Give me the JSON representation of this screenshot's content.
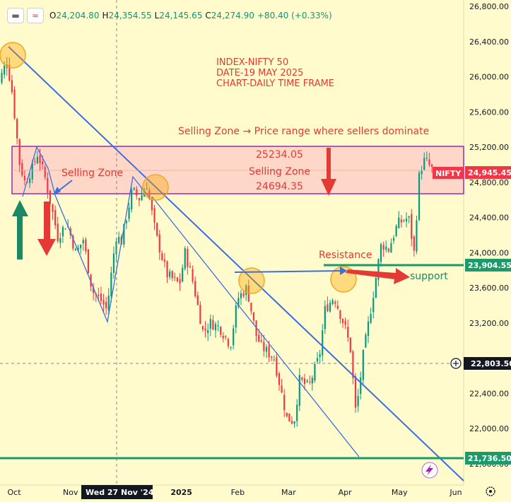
{
  "toolbar": {
    "collapse_icon": "minus-icon",
    "wave_icon": "wave-icon",
    "labels": {
      "o": "O",
      "h": "H",
      "l": "L",
      "c": "C"
    },
    "open": "24,204.80",
    "high": "24,354.55",
    "low": "24,145.65",
    "close": "24,274.90",
    "change": "+80.40 (+0.33%)"
  },
  "annotations": {
    "info_line1": "INDEX-NIFTY 50",
    "info_line2": "DATE-19 MAY 2025",
    "info_line3": "CHART-DAILY TIME FRAME",
    "zone_definition": "Selling Zone → Price range where sellers dominate",
    "zone_top": "25234.05",
    "zone_mid": "Selling Zone",
    "zone_bottom": "24694.35",
    "left_zone_label": "Selling Zone",
    "resistance": "Resistance",
    "support": "support"
  },
  "price_labels": {
    "nifty_tag": "NIFTY",
    "last_price": "24,945.45",
    "support_level": "23,904.55",
    "crosshair_price": "22,803.50",
    "bottom_level": "21,736.50",
    "crosshair_date": "Wed 27 Nov '24"
  },
  "colors": {
    "background": "#fffbcc",
    "up": "#089981",
    "down": "#f23645",
    "trendline": "#3b6fe0",
    "zone_fill": "#ffd7c8",
    "zone_border": "#9c27b0",
    "annotation_red": "#e53935",
    "support_green": "#1b9b6b"
  },
  "chart_data": {
    "type": "candlestick",
    "y_axis": {
      "min": 21450,
      "max": 26800,
      "ticks": [
        "26,800.00",
        "26,400.00",
        "26,000.00",
        "25,600.00",
        "25,200.00",
        "24,800.00",
        "24,400.00",
        "24,000.00",
        "23,600.00",
        "23,200.00",
        "22,400.00",
        "22,000.00",
        "21,600.00"
      ]
    },
    "x_axis": {
      "ticks": [
        {
          "label": "Oct",
          "date": "2024-10-01"
        },
        {
          "label": "Nov",
          "date": "2024-11-01"
        },
        {
          "label": "2025",
          "date": "2025-01-01"
        },
        {
          "label": "Feb",
          "date": "2025-02-01"
        },
        {
          "label": "Mar",
          "date": "2025-03-01"
        },
        {
          "label": "Apr",
          "date": "2025-04-01"
        },
        {
          "label": "May",
          "date": "2025-05-01"
        },
        {
          "label": "Jun",
          "date": "2025-06-01"
        }
      ]
    },
    "levels": {
      "selling_zone_high": 25234.05,
      "selling_zone_low": 24694.35,
      "support": 23904.55,
      "bottom": 21736.5,
      "crosshair": 22803.5,
      "last": 24945.45
    },
    "close_path": [
      [
        "2024-09-20",
        25790
      ],
      [
        "2024-09-27",
        26180
      ],
      [
        "2024-09-30",
        25810
      ],
      [
        "2024-10-04",
        25015
      ],
      [
        "2024-10-07",
        24795
      ],
      [
        "2024-10-11",
        24960
      ],
      [
        "2024-10-14",
        25130
      ],
      [
        "2024-10-18",
        24850
      ],
      [
        "2024-10-22",
        24470
      ],
      [
        "2024-10-25",
        24180
      ],
      [
        "2024-10-30",
        24340
      ],
      [
        "2024-11-04",
        23990
      ],
      [
        "2024-11-08",
        24150
      ],
      [
        "2024-11-13",
        23560
      ],
      [
        "2024-11-18",
        23450
      ],
      [
        "2024-11-21",
        23350
      ],
      [
        "2024-11-26",
        24190
      ],
      [
        "2024-11-29",
        24130
      ],
      [
        "2024-12-05",
        24710
      ],
      [
        "2024-12-09",
        24610
      ],
      [
        "2024-12-13",
        24770
      ],
      [
        "2024-12-18",
        24200
      ],
      [
        "2024-12-24",
        23750
      ],
      [
        "2024-12-31",
        23640
      ],
      [
        "2025-01-03",
        24000
      ],
      [
        "2025-01-07",
        23700
      ],
      [
        "2025-01-13",
        23090
      ],
      [
        "2025-01-17",
        23200
      ],
      [
        "2025-01-22",
        23150
      ],
      [
        "2025-01-28",
        22950
      ],
      [
        "2025-02-01",
        23480
      ],
      [
        "2025-02-06",
        23600
      ],
      [
        "2025-02-11",
        23070
      ],
      [
        "2025-02-14",
        22930
      ],
      [
        "2025-02-21",
        22800
      ],
      [
        "2025-02-28",
        22120
      ],
      [
        "2025-03-04",
        22080
      ],
      [
        "2025-03-07",
        22550
      ],
      [
        "2025-03-12",
        22470
      ],
      [
        "2025-03-18",
        22830
      ],
      [
        "2025-03-21",
        23350
      ],
      [
        "2025-03-26",
        23500
      ],
      [
        "2025-04-01",
        23150
      ],
      [
        "2025-04-04",
        22900
      ],
      [
        "2025-04-07",
        22160
      ],
      [
        "2025-04-11",
        22830
      ],
      [
        "2025-04-15",
        23330
      ],
      [
        "2025-04-21",
        24100
      ],
      [
        "2025-04-25",
        24040
      ],
      [
        "2025-04-30",
        24330
      ],
      [
        "2025-05-06",
        24400
      ],
      [
        "2025-05-09",
        24000
      ],
      [
        "2025-05-12",
        24920
      ],
      [
        "2025-05-15",
        25060
      ],
      [
        "2025-05-19",
        24945
      ]
    ],
    "series": [
      {
        "type": "trendline",
        "from": [
          "2024-09-27",
          26350
        ],
        "to": [
          "2025-05-28",
          21400
        ]
      },
      {
        "type": "trendline",
        "from": [
          "2024-10-28",
          24700
        ],
        "to": [
          "2025-04-07",
          21750
        ]
      },
      {
        "type": "hline",
        "y": 23904.55,
        "from": "2025-03-25",
        "to": "2025-06-05"
      },
      {
        "type": "hline",
        "y": 21736.5,
        "from": "2024-09-15",
        "to": "2025-06-05"
      }
    ]
  }
}
